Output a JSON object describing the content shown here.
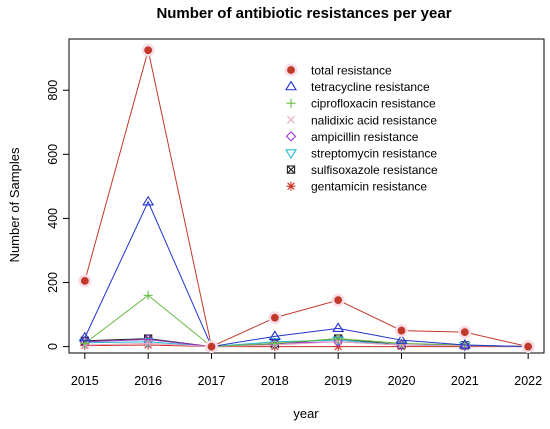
{
  "chart_data": {
    "type": "line",
    "title": "Number of antibiotic resistances per year",
    "xlabel": "year",
    "ylabel": "Number of Samples",
    "x": [
      2015,
      2016,
      2017,
      2018,
      2019,
      2020,
      2021,
      2022
    ],
    "xlim": [
      2014.75,
      2022.25
    ],
    "ylim": [
      -20,
      960
    ],
    "yticks": [
      0,
      200,
      400,
      600,
      800
    ],
    "legend_position": "top-right",
    "series": [
      {
        "name": "total resistance",
        "color": "#c0392b",
        "marker": "filled-circle",
        "values": [
          205,
          925,
          0,
          90,
          145,
          50,
          45,
          0
        ]
      },
      {
        "name": "tetracycline resistance",
        "color": "#2233cc",
        "marker": "triangle-up",
        "values": [
          28,
          452,
          0,
          32,
          57,
          20,
          5,
          0
        ]
      },
      {
        "name": "ciprofloxacin resistance",
        "color": "#66bb44",
        "marker": "plus",
        "values": [
          10,
          160,
          0,
          10,
          25,
          10,
          5,
          0
        ]
      },
      {
        "name": "nalidixic acid resistance",
        "color": "#e8a6c8",
        "marker": "cross",
        "values": [
          5,
          10,
          0,
          5,
          15,
          5,
          3,
          0
        ]
      },
      {
        "name": "ampicillin resistance",
        "color": "#9933cc",
        "marker": "diamond",
        "values": [
          15,
          22,
          0,
          10,
          15,
          5,
          3,
          0
        ]
      },
      {
        "name": "streptomycin resistance",
        "color": "#22bbcc",
        "marker": "triangle-down",
        "values": [
          12,
          15,
          0,
          15,
          20,
          5,
          3,
          0
        ]
      },
      {
        "name": "sulfisoxazole resistance",
        "color": "#222222",
        "marker": "square-x",
        "values": [
          18,
          25,
          0,
          8,
          25,
          5,
          4,
          0
        ]
      },
      {
        "name": "gentamicin resistance",
        "color": "#cc3322",
        "marker": "asterisk",
        "values": [
          3,
          5,
          0,
          0,
          0,
          0,
          0,
          0
        ]
      }
    ]
  }
}
